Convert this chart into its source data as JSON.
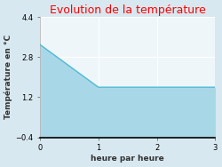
{
  "title": "Evolution de la température",
  "title_color": "#ff0000",
  "xlabel": "heure par heure",
  "ylabel": "Température en °C",
  "x": [
    0,
    1,
    2,
    3
  ],
  "y": [
    3.3,
    1.6,
    1.6,
    1.6
  ],
  "fill_color": "#a8d8e8",
  "fill_alpha": 1.0,
  "line_color": "#4db8d4",
  "line_width": 1.0,
  "ylim": [
    -0.4,
    4.4
  ],
  "xlim": [
    0,
    3
  ],
  "yticks": [
    -0.4,
    1.2,
    2.8,
    4.4
  ],
  "xticks": [
    0,
    1,
    2,
    3
  ],
  "bg_color": "#d8e8f0",
  "plot_bg_color": "#eef6fa",
  "grid_color": "#ffffff",
  "axis_label_fontsize": 6.5,
  "title_fontsize": 9,
  "tick_fontsize": 6
}
